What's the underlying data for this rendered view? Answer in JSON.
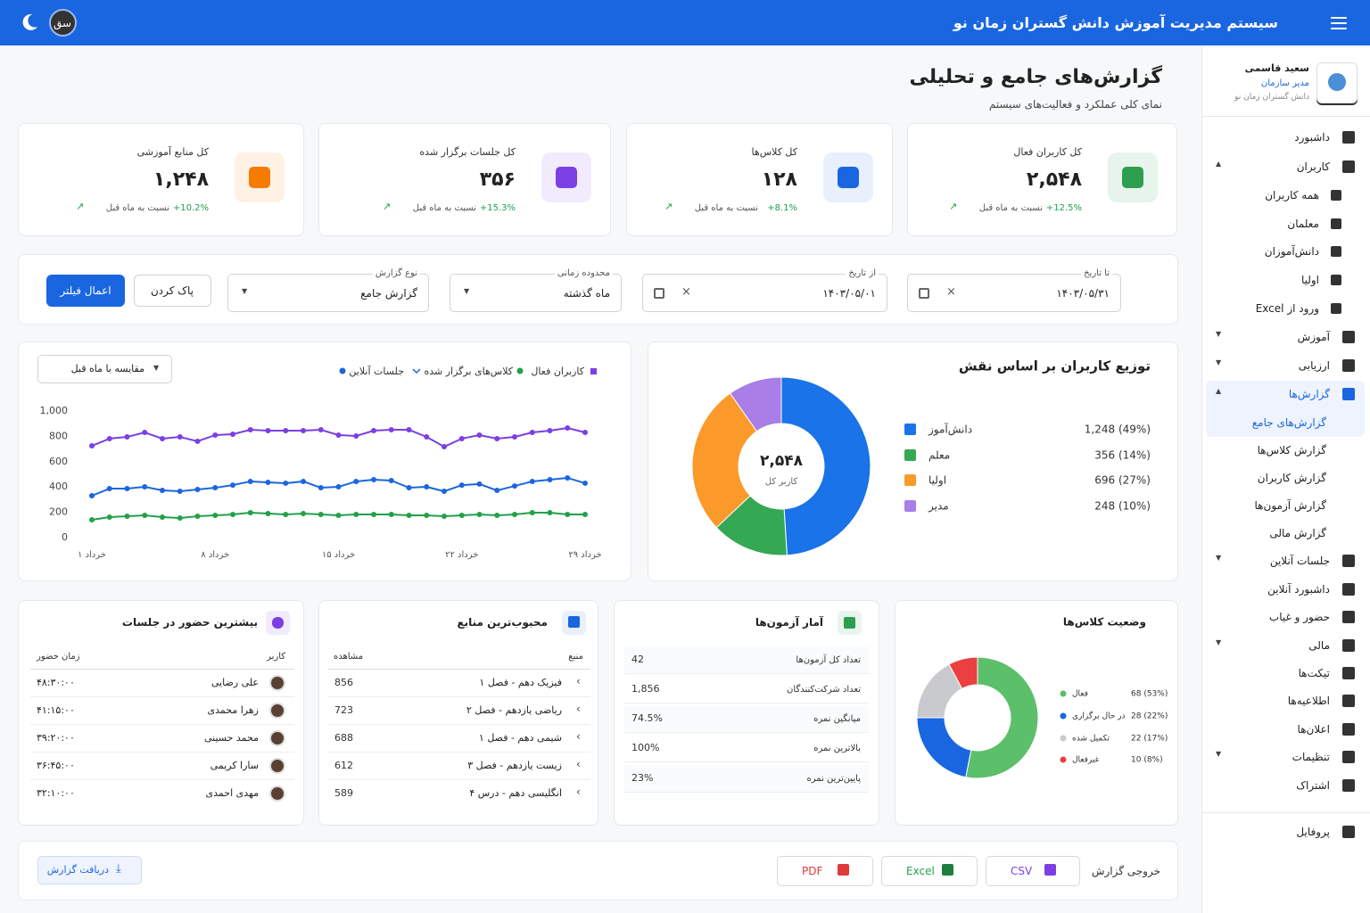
{
  "header": {
    "title": "سیستم مدیریت آموزش دانش گستران زمان نو",
    "avatar": "سق"
  },
  "user": {
    "name": "سعید قاسمی",
    "role": "مدیر سازمان",
    "org": "دانش گستران زمان نو"
  },
  "sidebar": {
    "menu": [
      "داشبورد",
      "کاربران",
      "همه کاربران",
      "معلمان",
      "دانش‌آموزان",
      "اولیا",
      "ورود از Excel",
      "آموزش",
      "ارزیابی",
      "گزارش‌ها",
      "گزارش‌های جامع",
      "گزارش کلاس‌ها",
      "گزارش کاربران",
      "گزارش آزمون‌ها",
      "گزارش مالی",
      "جلسات آنلاین",
      "داشبورد آنلاین",
      "حضور و غیاب",
      "مالی",
      "تیکت‌ها",
      "اطلاعیه‌ها",
      "اعلان‌ها",
      "تنظیمات",
      "اشتراک",
      "پروفایل"
    ]
  },
  "page": {
    "title": "گزارش‌های جامع و تحلیلی",
    "subtitle": "نمای کلی عملکرد و فعالیت‌های سیستم"
  },
  "stat_cards": [
    {
      "label": "کل کاربران فعال",
      "value": "۲,۵۴۸",
      "change": "+12.5%",
      "change_note": "نسبت به ماه قبل"
    },
    {
      "label": "کل کلاس‌ها",
      "value": "۱۲۸",
      "change": "+8.1%",
      "change_note": "نسبت به ماه قبل"
    },
    {
      "label": "کل جلسات برگزار شده",
      "value": "۳۵۶",
      "change": "+15.3%",
      "change_note": "نسبت به ماه قبل"
    },
    {
      "label": "کل منابع آموزشی",
      "value": "۱,۲۴۸",
      "change": "+10.2%",
      "change_note": "نسبت به ماه قبل"
    }
  ],
  "filters": {
    "fields": [
      {
        "label": "تا تاریخ",
        "value": "۱۴۰۳/۰۵/۳۱"
      },
      {
        "label": "از تاریخ",
        "value": "۱۴۰۳/۰۵/۰۱"
      },
      {
        "label": "محدوده زمانی",
        "value": "ماه گذشته"
      },
      {
        "label": "نوع گزارش",
        "value": "گزارش جامع"
      }
    ],
    "clear": "پاک کردن",
    "apply": "اعمال فیلتر"
  },
  "chart_data": [
    {
      "type": "line",
      "compare_select": "مقایسه با ماه قبل",
      "categories": [
        "۱ خرداد",
        null,
        null,
        null,
        null,
        null,
        null,
        "۸ خرداد",
        null,
        null,
        null,
        null,
        null,
        null,
        "۱۵ خرداد",
        null,
        null,
        null,
        null,
        null,
        null,
        "۲۲ خرداد",
        null,
        null,
        null,
        null,
        null,
        null,
        "۲۹ خرداد"
      ],
      "series": [
        {
          "name": "کاربران فعال",
          "color": "#7b3fe4",
          "values": [
            725,
            782,
            796,
            831,
            782,
            796,
            761,
            810,
            817,
            852,
            845,
            845,
            845,
            852,
            810,
            803,
            845,
            852,
            852,
            796,
            718,
            782,
            810,
            782,
            796,
            831,
            845,
            866,
            831
          ]
        },
        {
          "name": "کلاس‌های برگزار شده",
          "color": "#22a04b",
          "values": [
            141,
            162,
            169,
            176,
            162,
            155,
            169,
            176,
            183,
            197,
            190,
            183,
            190,
            183,
            176,
            183,
            183,
            183,
            176,
            176,
            169,
            176,
            183,
            176,
            183,
            197,
            197,
            183,
            183
          ]
        },
        {
          "name": "جلسات آنلاین",
          "color": "#1a66e0",
          "values": [
            331,
            387,
            387,
            401,
            373,
            366,
            380,
            394,
            415,
            444,
            437,
            430,
            444,
            394,
            401,
            444,
            458,
            451,
            394,
            401,
            366,
            415,
            423,
            373,
            408,
            444,
            458,
            472,
            430
          ]
        }
      ],
      "ylim": [
        0,
        1000
      ],
      "yticks": [
        0,
        200,
        400,
        600,
        800,
        {
          "value": 1000,
          "label": "1,000"
        }
      ],
      "grid": false
    },
    {
      "type": "donut",
      "title": "توزیع کاربران بر اساس نقش",
      "center_value": "۲,۵۴۸",
      "center_label": "کاربر کل",
      "categories": [
        "دانش‌آموز",
        "معلم",
        "اولیا",
        "مدیر"
      ],
      "values": [
        1248,
        356,
        696,
        248
      ],
      "value_labels": [
        "1,248 (49%)",
        "356 (14%)",
        "696 (27%)",
        "248 (10%)"
      ],
      "colors": [
        "#1a73e8",
        "#34a853",
        "#fb9a2b",
        "#a97ee6"
      ]
    },
    {
      "type": "donut",
      "title": "وضعیت کلاس‌ها",
      "categories": [
        "فعال",
        "در حال برگزاری",
        "تکمیل شده",
        "غیرفعال"
      ],
      "values": [
        68,
        28,
        22,
        10
      ],
      "value_labels": [
        "68 (53%)",
        "28 (22%)",
        "22 (17%)",
        "10 (8%)"
      ],
      "colors": [
        "#5cbf6a",
        "#1a66e0",
        "#c8cacd",
        "#ea4040"
      ]
    }
  ],
  "attendance": {
    "title": "بیشترین حضور در جلسات",
    "columns": [
      "کاربر",
      "زمان حضور"
    ],
    "rows": [
      [
        "علی رضایی",
        "۴۸:۳۰:۰۰"
      ],
      [
        "زهرا محمدی",
        "۴۱:۱۵:۰۰"
      ],
      [
        "محمد حسینی",
        "۳۹:۲۰:۰۰"
      ],
      [
        "سارا کریمی",
        "۳۶:۴۵:۰۰"
      ],
      [
        "مهدی احمدی",
        "۳۲:۱۰:۰۰"
      ]
    ]
  },
  "resources": {
    "title": "محبوب‌ترین منابع",
    "columns": [
      "منبع",
      "مشاهده"
    ],
    "rows": [
      [
        "فیزیک دهم - فصل ۱",
        856
      ],
      [
        "ریاضی یازدهم - فصل ۲",
        723
      ],
      [
        "شیمی دهم - فصل ۱",
        688
      ],
      [
        "زیست یازدهم - فصل ۳",
        612
      ],
      [
        "انگلیسی دهم - درس ۴",
        589
      ]
    ]
  },
  "exam_stats": {
    "title": "آمار آزمون‌ها",
    "rows": [
      [
        "تعداد کل آزمون‌ها",
        "42"
      ],
      [
        "تعداد شرکت‌کنندگان",
        "1,856"
      ],
      [
        "میانگین نمره",
        "74.5%"
      ],
      [
        "بالاترین نمره",
        "100%"
      ],
      [
        "پایین‌ترین نمره",
        "23%"
      ]
    ]
  },
  "export": {
    "label": "خروجی گزارش",
    "formats": [
      "CSV",
      "Excel",
      "PDF"
    ],
    "download": "دریافت گزارش"
  }
}
